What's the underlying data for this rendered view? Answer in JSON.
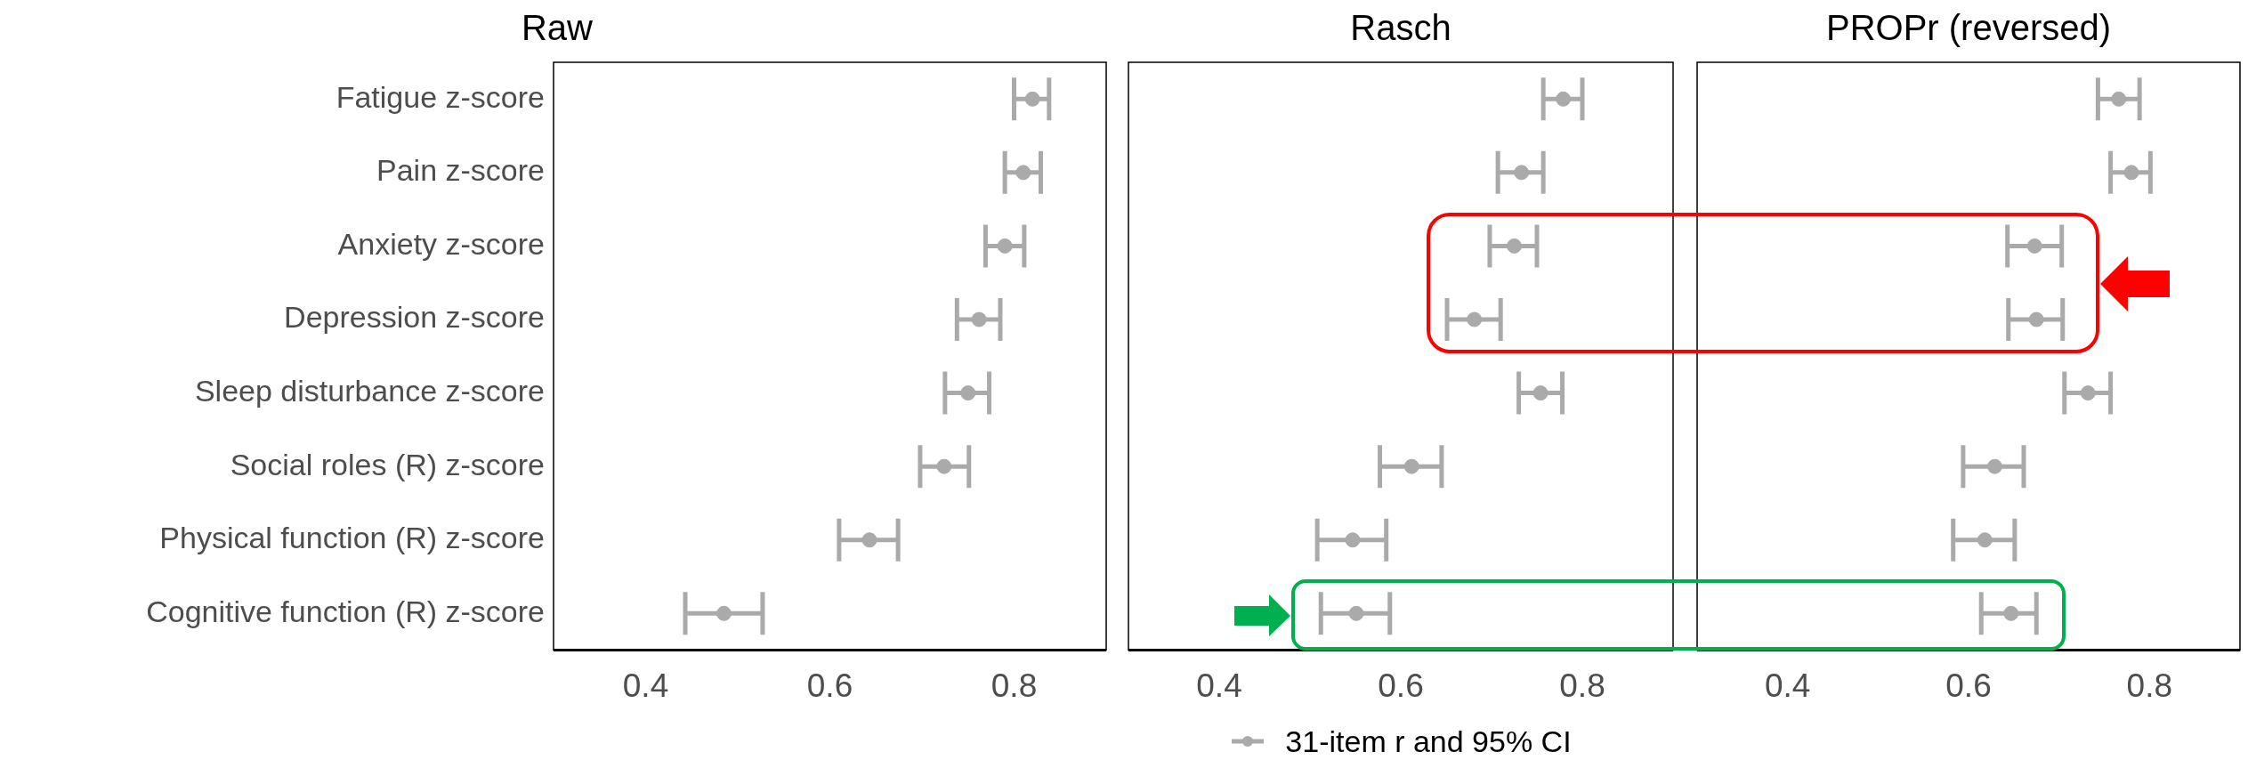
{
  "chart_data": [
    {
      "type": "scatter",
      "orientation": "horizontal",
      "title": "Raw",
      "categories": [
        "Fatigue z-score",
        "Pain z-score",
        "Anxiety z-score",
        "Depression z-score",
        "Sleep disturbance z-score",
        "Social roles (R) z-score",
        "Physical function (R) z-score",
        "Cognitive function (R) z-score"
      ],
      "series": [
        {
          "color": "#aaaaaa",
          "values": [
            0.82,
            0.81,
            0.79,
            0.762,
            0.75,
            0.724,
            0.643,
            0.485
          ],
          "errors": [
            [
              0.8,
              0.838
            ],
            [
              0.79,
              0.829
            ],
            [
              0.769,
              0.811
            ],
            [
              0.738,
              0.785
            ],
            [
              0.725,
              0.773
            ],
            [
              0.698,
              0.751
            ],
            [
              0.61,
              0.674
            ],
            [
              0.443,
              0.527
            ]
          ]
        }
      ],
      "xlim": [
        0.3,
        0.9
      ],
      "xticks": [
        0.4,
        0.6,
        0.8
      ],
      "marker": "circle"
    },
    {
      "type": "scatter",
      "orientation": "horizontal",
      "title": "Rasch",
      "series": [
        {
          "name": "31-item r and 95% CI",
          "color": "#aaaaaa",
          "values": [
            0.779,
            0.733,
            0.725,
            0.681,
            0.754,
            0.612,
            0.547,
            0.551
          ],
          "errors": [
            [
              0.757,
              0.8
            ],
            [
              0.707,
              0.757
            ],
            [
              0.698,
              0.75
            ],
            [
              0.651,
              0.71
            ],
            [
              0.73,
              0.778
            ],
            [
              0.577,
              0.645
            ],
            [
              0.508,
              0.584
            ],
            [
              0.512,
              0.588
            ]
          ]
        }
      ],
      "xlim": [
        0.3,
        0.9
      ],
      "xticks": [
        0.4,
        0.6,
        0.8
      ],
      "marker": "circle",
      "legend": "bottom",
      "tick_labels": "x"
    },
    {
      "type": "scatter",
      "orientation": "horizontal",
      "title": "PROPr (reversed)",
      "series": [
        {
          "color": "#aaaaaa",
          "values": [
            0.766,
            0.78,
            0.673,
            0.675,
            0.732,
            0.629,
            0.618,
            0.647
          ],
          "errors": [
            [
              0.743,
              0.789
            ],
            [
              0.757,
              0.801
            ],
            [
              0.643,
              0.703
            ],
            [
              0.644,
              0.704
            ],
            [
              0.706,
              0.757
            ],
            [
              0.594,
              0.661
            ],
            [
              0.583,
              0.651
            ],
            [
              0.614,
              0.675
            ]
          ]
        }
      ],
      "xlim": [
        0.3,
        0.9
      ],
      "xticks": [
        0.4,
        0.6,
        0.8
      ],
      "marker": "circle",
      "tick_labels": "x"
    }
  ]
}
